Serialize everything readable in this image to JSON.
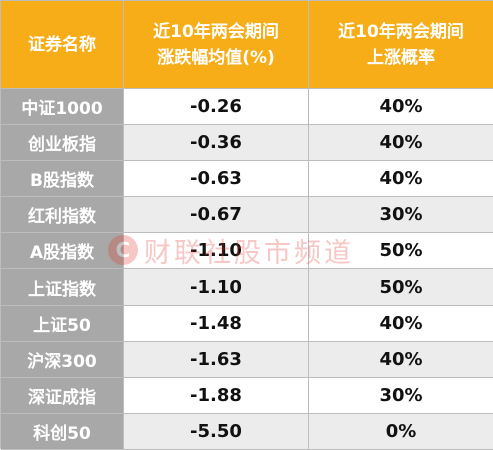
{
  "table": {
    "headers": {
      "col1": "证券名称",
      "col2_line1": "近10年两会期间",
      "col2_line2": "涨跌幅均值(%)",
      "col3_line1": "近10年两会期间",
      "col3_line2": "上涨概率"
    },
    "rows": [
      {
        "name": "中证1000",
        "avg_change": "-0.26",
        "up_prob": "40%"
      },
      {
        "name": "创业板指",
        "avg_change": "-0.36",
        "up_prob": "40%"
      },
      {
        "name": "B股指数",
        "avg_change": "-0.63",
        "up_prob": "40%"
      },
      {
        "name": "红利指数",
        "avg_change": "-0.67",
        "up_prob": "30%"
      },
      {
        "name": "A股指数",
        "avg_change": "-1.10",
        "up_prob": "50%"
      },
      {
        "name": "上证指数",
        "avg_change": "-1.10",
        "up_prob": "50%"
      },
      {
        "name": "上证50",
        "avg_change": "-1.48",
        "up_prob": "40%"
      },
      {
        "name": "沪深300",
        "avg_change": "-1.63",
        "up_prob": "40%"
      },
      {
        "name": "深证成指",
        "avg_change": "-1.88",
        "up_prob": "30%"
      },
      {
        "name": "科创50",
        "avg_change": "-5.50",
        "up_prob": "0%"
      }
    ]
  },
  "watermark": {
    "logo": "C",
    "text": "财联社股市频道"
  },
  "colors": {
    "header_bg": "#f6ad18",
    "name_col_bg": "#a8a8a8",
    "stripe_bg": "#ececec",
    "watermark": "#e03a2e"
  }
}
